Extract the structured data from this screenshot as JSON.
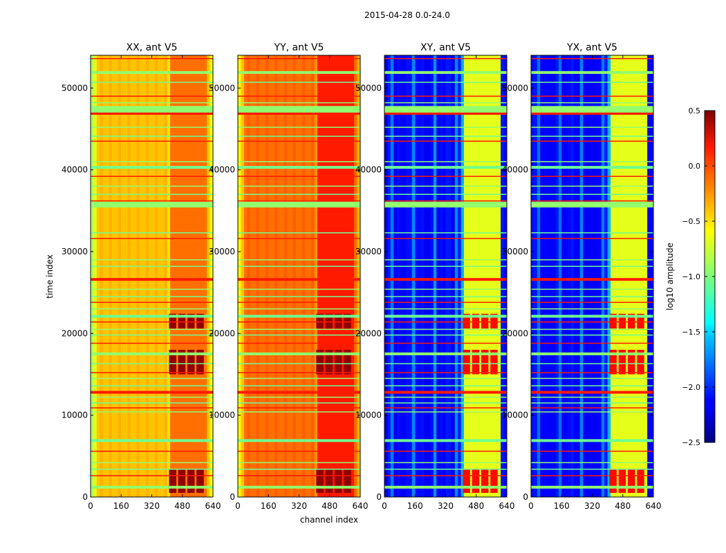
{
  "figure": {
    "suptitle": "2015-04-28 0.0-24.0",
    "xlabel": "channel index",
    "ylabel": "time index"
  },
  "chart_data": {
    "type": "heatmap",
    "title": "2015-04-28 0.0-24.0",
    "colormap": "jet",
    "panels": [
      {
        "title": "XX, ant V5",
        "polarization": "XX",
        "baseline_level": -0.45,
        "character": "high-amplitude (yellow/orange) with dark-red band region at channels ~400-600"
      },
      {
        "title": "YY, ant V5",
        "polarization": "YY",
        "baseline_level": -0.2,
        "character": "orange/red overall with dark-red band region at channels ~400-600"
      },
      {
        "title": "XY, ant V5",
        "polarization": "XY",
        "baseline_level": -2.2,
        "character": "low-amplitude (blue) with bright vertical stripes at channels ~400-600"
      },
      {
        "title": "YX, ant V5",
        "polarization": "YX",
        "baseline_level": -2.2,
        "character": "low-amplitude (blue) with bright vertical stripes at channels ~400-600"
      }
    ],
    "xlabel": "channel index",
    "ylabel": "time index",
    "xlim": [
      0,
      640
    ],
    "ylim": [
      0,
      54000
    ],
    "xticks": [
      "0",
      "160",
      "320",
      "480",
      "640"
    ],
    "xtick_values": [
      0,
      160,
      320,
      480,
      640
    ],
    "yticks": [
      "0",
      "10000",
      "20000",
      "30000",
      "40000",
      "50000"
    ],
    "ytick_values": [
      0,
      10000,
      20000,
      30000,
      40000,
      50000
    ],
    "band_region_channels": [
      400,
      600
    ],
    "flagged_rows_time": [
      1200,
      2600,
      3400,
      4200,
      5600,
      6900,
      10400,
      10900,
      11500,
      12200,
      12800,
      13600,
      14500,
      15200,
      16300,
      17500,
      18800,
      19800,
      20500,
      21400,
      22100,
      23000,
      23800,
      24500,
      25400,
      26600,
      28200,
      29000,
      31600,
      32300,
      35600,
      36200,
      37000,
      38000,
      39200,
      40300,
      41000,
      43500,
      44100,
      45200,
      46900,
      47600,
      48200,
      49000,
      50700,
      51900,
      53600
    ],
    "colorbar": {
      "label": "log10 amplitude",
      "range": [
        -2.5,
        0.5
      ],
      "ticks": [
        "0.5",
        "0.0",
        "−0.5",
        "−1.0",
        "−1.5",
        "−2.0",
        "−2.5"
      ],
      "tick_values": [
        0.5,
        0.0,
        -0.5,
        -1.0,
        -1.5,
        -2.0,
        -2.5
      ]
    }
  }
}
